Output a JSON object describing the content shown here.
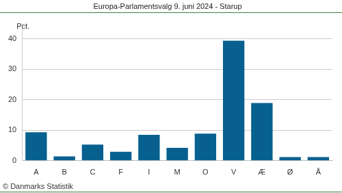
{
  "chart_data": {
    "type": "bar",
    "title": "Europa-Parlamentsvalg 9. juni 2024 - Starup",
    "ylabel": "Pct.",
    "annotations": [
      "© Danmarks Statistik"
    ],
    "categories": [
      "A",
      "B",
      "C",
      "F",
      "I",
      "M",
      "O",
      "V",
      "Æ",
      "Ø",
      "Å"
    ],
    "values": [
      9.3,
      1.4,
      5.3,
      2.9,
      8.5,
      4.2,
      8.9,
      39.3,
      18.9,
      1.2,
      1.2
    ],
    "color": "#08608f",
    "ylim": [
      0,
      45
    ],
    "yticks": [
      0,
      10,
      20,
      30,
      40
    ],
    "grid": true
  }
}
